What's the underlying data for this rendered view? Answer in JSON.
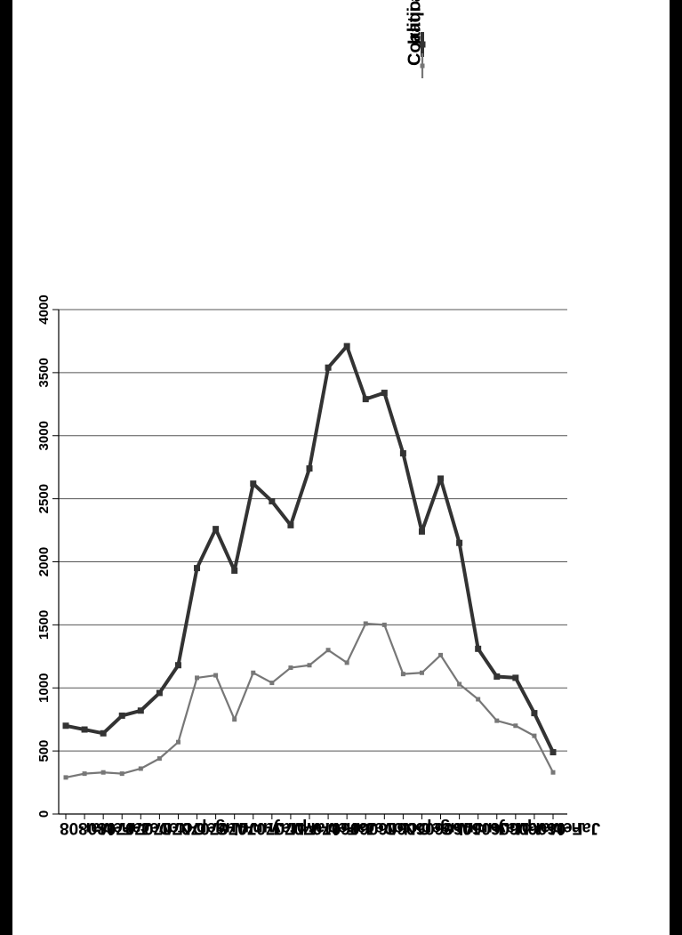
{
  "chart_data": {
    "type": "line",
    "orientation": "rotated-180",
    "categories": [
      "Jan-06",
      "Feb-06",
      "Mar-06",
      "Apr-06",
      "May-06",
      "Jun-06",
      "Jul-06",
      "Aug-06",
      "Sep-06",
      "Oct-06",
      "Nov-06",
      "Dec-06",
      "Jan-07",
      "Feb-07",
      "Mar-07",
      "Apr-07",
      "May-07",
      "Jun-07",
      "Jul-07",
      "Aug-07",
      "Sep-07",
      "Oct-07",
      "Nov-07",
      "Dec-07",
      "Jan-08",
      "Feb-08",
      "Mar-08"
    ],
    "yticks": [
      0,
      500,
      1000,
      1500,
      2000,
      2500,
      3000,
      3500,
      4000
    ],
    "ylim": [
      0,
      4000
    ],
    "grid": true,
    "legend": "top-right",
    "series": [
      {
        "name": "Iraqi and Coalition Data",
        "color": "#333333",
        "values": [
          490,
          800,
          1080,
          1090,
          1310,
          2150,
          2660,
          2240,
          2860,
          3340,
          3290,
          3710,
          3540,
          2740,
          2290,
          2480,
          2620,
          1930,
          2260,
          1950,
          1180,
          960,
          820,
          780,
          640,
          670,
          700
        ]
      },
      {
        "name": "Coalition Data",
        "color": "#777777",
        "values": [
          330,
          620,
          700,
          740,
          910,
          1030,
          1260,
          1120,
          1110,
          1500,
          1510,
          1200,
          1300,
          1180,
          1160,
          1040,
          1120,
          750,
          1100,
          1080,
          570,
          440,
          360,
          320,
          330,
          320,
          290
        ]
      }
    ]
  }
}
